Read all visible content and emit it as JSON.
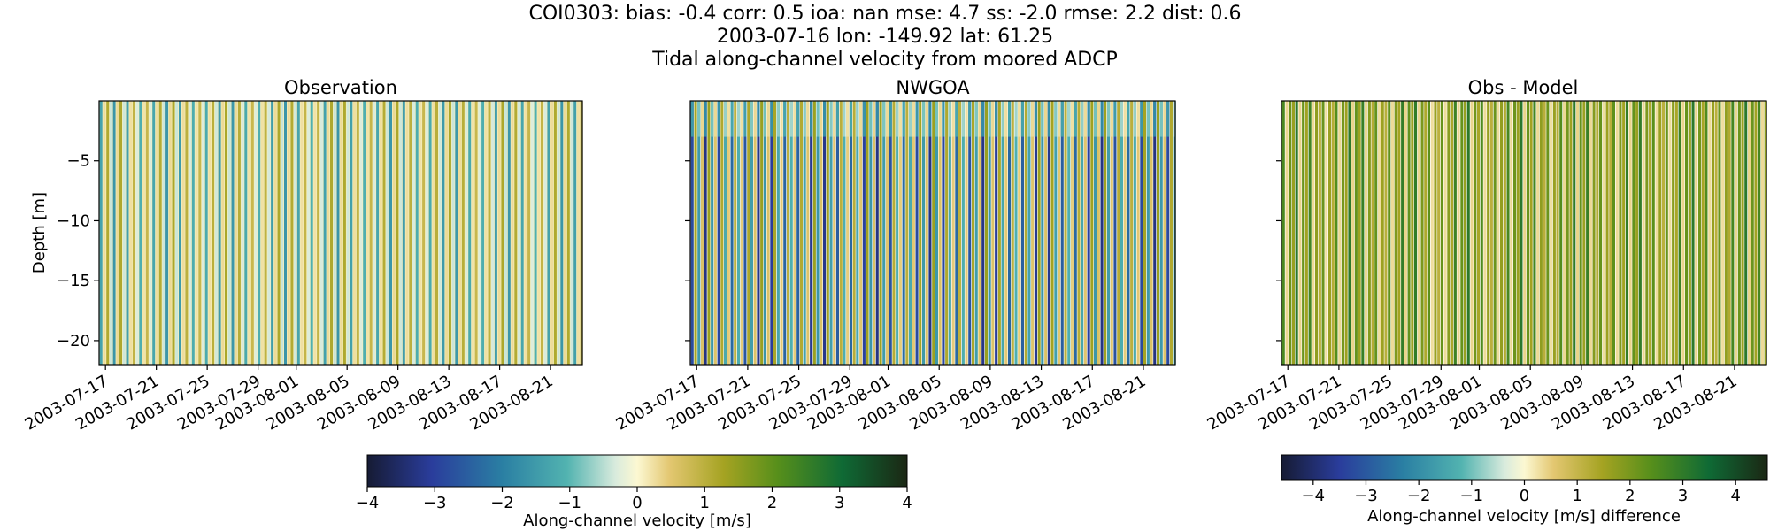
{
  "figure": {
    "suptitle_lines": [
      "COI0303: bias: -0.4  corr: 0.5  ioa: nan  mse: 4.7  ss: -2.0  rmse: 2.2  dist: 0.6",
      "2003-07-16 lon: -149.92 lat: 61.25",
      "Tidal along-channel velocity from moored ADCP"
    ]
  },
  "chart_data": [
    {
      "type": "heatmap",
      "title": "Observation",
      "ylabel": "Depth [m]",
      "xlabel": "",
      "x_range": [
        "2003-07-16T12:00",
        "2003-08-23T12:00"
      ],
      "ylim": [
        -22,
        0
      ],
      "x_tick_labels": [
        "2003-07-17",
        "2003-07-21",
        "2003-07-25",
        "2003-07-29",
        "2003-08-01",
        "2003-08-05",
        "2003-08-09",
        "2003-08-13",
        "2003-08-17",
        "2003-08-21"
      ],
      "y_ticks": [
        -5,
        -10,
        -15,
        -20
      ],
      "value_range": [
        -4,
        4
      ],
      "pattern": "alternating tidal stripes approx. every 12.4 h, values roughly -2 to +1.5 m/s, vertically uniform"
    },
    {
      "type": "heatmap",
      "title": "NWGOA",
      "ylabel": "",
      "xlabel": "",
      "x_range": [
        "2003-07-16T12:00",
        "2003-08-23T12:00"
      ],
      "ylim": [
        -22,
        0
      ],
      "x_tick_labels": [
        "2003-07-17",
        "2003-07-21",
        "2003-07-25",
        "2003-07-29",
        "2003-08-01",
        "2003-08-05",
        "2003-08-09",
        "2003-08-13",
        "2003-08-17",
        "2003-08-21"
      ],
      "y_ticks": [
        -5,
        -10,
        -15,
        -20
      ],
      "value_range": [
        -4,
        4
      ],
      "pattern": "alternating tidal stripes approx. every 12.4 h, values roughly -3.5 to +1.5 m/s, stronger below ~3 m depth"
    },
    {
      "type": "heatmap",
      "title": "Obs - Model",
      "ylabel": "",
      "xlabel": "",
      "x_range": [
        "2003-07-16T12:00",
        "2003-08-23T12:00"
      ],
      "ylim": [
        -22,
        0
      ],
      "x_tick_labels": [
        "2003-07-17",
        "2003-07-21",
        "2003-07-25",
        "2003-07-29",
        "2003-08-01",
        "2003-08-05",
        "2003-08-09",
        "2003-08-13",
        "2003-08-17",
        "2003-08-21"
      ],
      "y_ticks": [
        -5,
        -10,
        -15,
        -20
      ],
      "value_range": [
        -4.5,
        4.5
      ],
      "pattern": "alternating tidal stripes, values roughly 0 to +3.5 m/s"
    }
  ],
  "colorbars": [
    {
      "label": "Along-channel velocity [m/s]",
      "ticks": [
        "−4",
        "−3",
        "−2",
        "−1",
        "0",
        "1",
        "2",
        "3",
        "4"
      ]
    },
    {
      "label": "Along-channel velocity [m/s] difference",
      "ticks": [
        "−4",
        "−3",
        "−2",
        "−1",
        "0",
        "1",
        "2",
        "3",
        "4"
      ]
    }
  ]
}
